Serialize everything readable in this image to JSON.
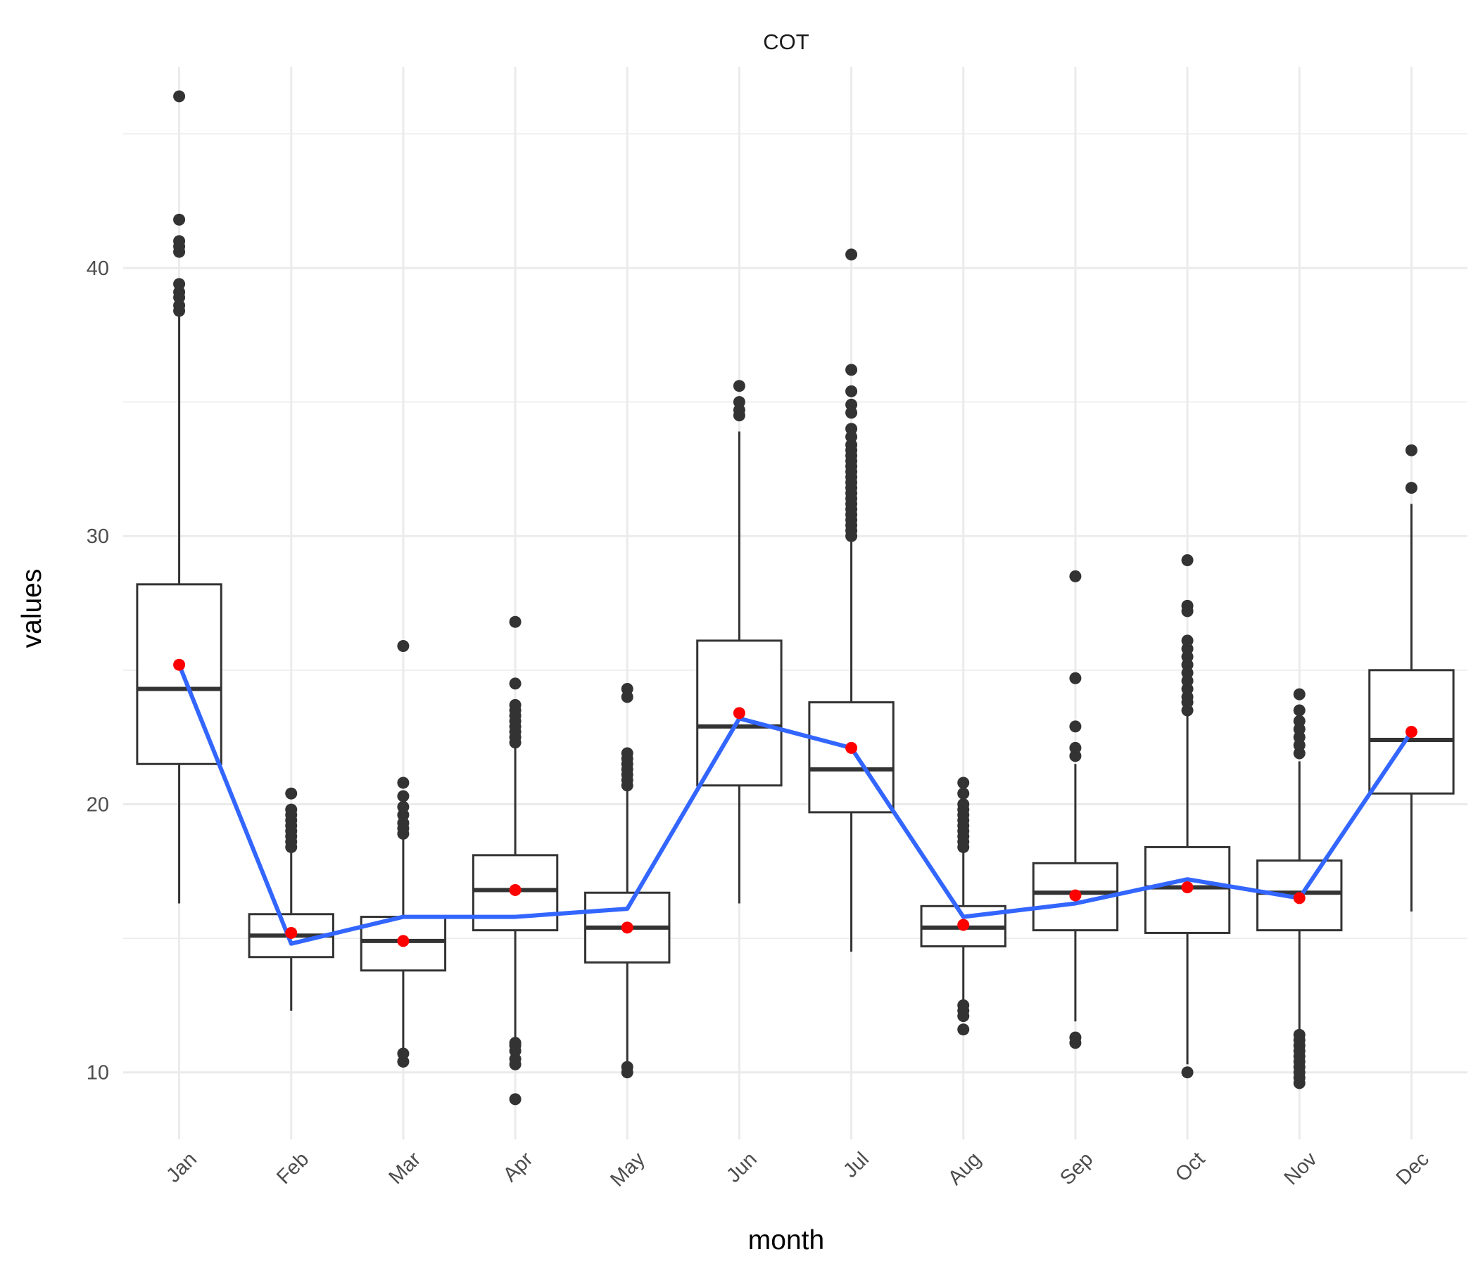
{
  "chart_data": {
    "type": "box",
    "title": "COT",
    "xlabel": "month",
    "ylabel": "values",
    "categories": [
      "Jan",
      "Feb",
      "Mar",
      "Apr",
      "May",
      "Jun",
      "Jul",
      "Aug",
      "Sep",
      "Oct",
      "Nov",
      "Dec"
    ],
    "ylim": [
      7.5,
      47.5
    ],
    "yticks": [
      10,
      20,
      30,
      40
    ],
    "grid": true,
    "boxes": [
      {
        "whisker_low": 16.3,
        "q1": 21.5,
        "median": 24.3,
        "q3": 28.2,
        "whisker_high": 38.2,
        "outliers": [
          38.4,
          38.6,
          38.9,
          39.1,
          39.4,
          40.6,
          40.8,
          41.0,
          41.8,
          46.4
        ]
      },
      {
        "whisker_low": 12.3,
        "q1": 14.3,
        "median": 15.1,
        "q3": 15.9,
        "whisker_high": 18.3,
        "outliers": [
          18.4,
          18.6,
          18.8,
          19.0,
          19.2,
          19.4,
          19.6,
          19.8,
          20.4
        ]
      },
      {
        "whisker_low": 10.4,
        "q1": 13.8,
        "median": 14.9,
        "q3": 15.8,
        "whisker_high": 18.7,
        "outliers": [
          10.4,
          10.7,
          18.9,
          19.1,
          19.3,
          19.6,
          19.9,
          20.3,
          20.8,
          25.9
        ]
      },
      {
        "whisker_low": 11.2,
        "q1": 15.3,
        "median": 16.8,
        "q3": 18.1,
        "whisker_high": 22.2,
        "outliers": [
          9.0,
          10.3,
          10.5,
          10.8,
          11.0,
          11.1,
          22.3,
          22.5,
          22.7,
          22.9,
          23.1,
          23.3,
          23.5,
          23.7,
          24.5,
          26.8
        ]
      },
      {
        "whisker_low": 10.3,
        "q1": 14.1,
        "median": 15.4,
        "q3": 16.7,
        "whisker_high": 20.5,
        "outliers": [
          10.0,
          10.2,
          20.7,
          20.9,
          21.1,
          21.3,
          21.5,
          21.7,
          21.9,
          24.0,
          24.3
        ]
      },
      {
        "whisker_low": 16.3,
        "q1": 20.7,
        "median": 22.9,
        "q3": 26.1,
        "whisker_high": 33.9,
        "outliers": [
          34.5,
          34.7,
          35.0,
          35.6
        ]
      },
      {
        "whisker_low": 14.5,
        "q1": 19.7,
        "median": 21.3,
        "q3": 23.8,
        "whisker_high": 29.9,
        "outliers": [
          30.0,
          30.2,
          30.4,
          30.6,
          30.8,
          31.0,
          31.2,
          31.4,
          31.6,
          31.8,
          32.0,
          32.2,
          32.4,
          32.6,
          32.8,
          33.0,
          33.2,
          33.4,
          33.7,
          34.0,
          34.6,
          34.9,
          35.4,
          36.2,
          40.5
        ]
      },
      {
        "whisker_low": 12.6,
        "q1": 14.7,
        "median": 15.4,
        "q3": 16.2,
        "whisker_high": 18.3,
        "outliers": [
          11.6,
          12.1,
          12.3,
          12.5,
          18.4,
          18.6,
          18.8,
          19.0,
          19.2,
          19.4,
          19.6,
          19.8,
          20.0,
          20.4,
          20.8
        ]
      },
      {
        "whisker_low": 11.9,
        "q1": 15.3,
        "median": 16.7,
        "q3": 17.8,
        "whisker_high": 21.5,
        "outliers": [
          11.1,
          11.3,
          21.8,
          22.1,
          22.9,
          24.7,
          28.5
        ]
      },
      {
        "whisker_low": 10.3,
        "q1": 15.2,
        "median": 16.9,
        "q3": 18.4,
        "whisker_high": 23.3,
        "outliers": [
          10.0,
          23.5,
          23.8,
          24.0,
          24.3,
          24.6,
          24.9,
          25.2,
          25.5,
          25.8,
          26.1,
          27.2,
          27.4,
          29.1
        ]
      },
      {
        "whisker_low": 11.6,
        "q1": 15.3,
        "median": 16.7,
        "q3": 17.9,
        "whisker_high": 21.6,
        "outliers": [
          9.6,
          9.8,
          10.0,
          10.2,
          10.4,
          10.6,
          10.8,
          11.0,
          11.2,
          11.4,
          21.9,
          22.2,
          22.5,
          22.8,
          23.1,
          23.5,
          24.1
        ]
      },
      {
        "whisker_low": 16.0,
        "q1": 20.4,
        "median": 22.4,
        "q3": 25.0,
        "whisker_high": 31.2,
        "outliers": [
          31.8,
          33.2
        ]
      }
    ],
    "mean_points": [
      25.2,
      15.2,
      14.9,
      16.8,
      15.4,
      23.4,
      22.1,
      15.5,
      16.6,
      16.9,
      16.5,
      22.7
    ],
    "trend_line": [
      25.2,
      14.8,
      15.8,
      15.8,
      16.1,
      23.2,
      22.1,
      15.8,
      16.3,
      17.2,
      16.5,
      22.7
    ],
    "colors": {
      "box_outline": "#333333",
      "outlier": "#333333",
      "mean_point": "#ff0000",
      "trend_line": "#3366ff",
      "grid": "#ebebeb"
    }
  }
}
